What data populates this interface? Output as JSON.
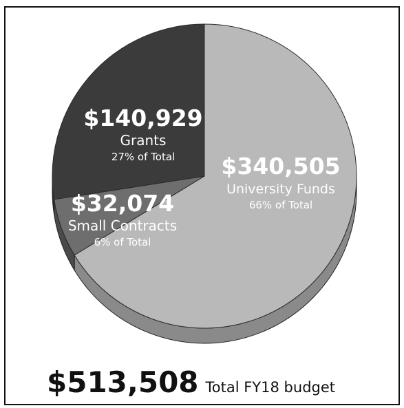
{
  "chart_data": {
    "type": "pie",
    "title": "",
    "slices": [
      {
        "name": "University Funds",
        "amount_label": "$340,505",
        "value": 340505,
        "percent_label": "66% of Total",
        "color": "#b9b9b9",
        "side_color": "#8a8a8a",
        "text_color": "#ffffff"
      },
      {
        "name": "Small Contracts",
        "amount_label": "$32,074",
        "value": 32074,
        "percent_label": "6% of Total",
        "color": "#6e6e6e",
        "side_color": "#4a4a4a",
        "text_color": "#ffffff"
      },
      {
        "name": "Grants",
        "amount_label": "$140,929",
        "value": 140929,
        "percent_label": "27% of Total",
        "color": "#3b3b3b",
        "side_color": "#262626",
        "text_color": "#ffffff"
      }
    ]
  },
  "total": {
    "amount": "$513,508",
    "caption": "Total FY18 budget"
  }
}
